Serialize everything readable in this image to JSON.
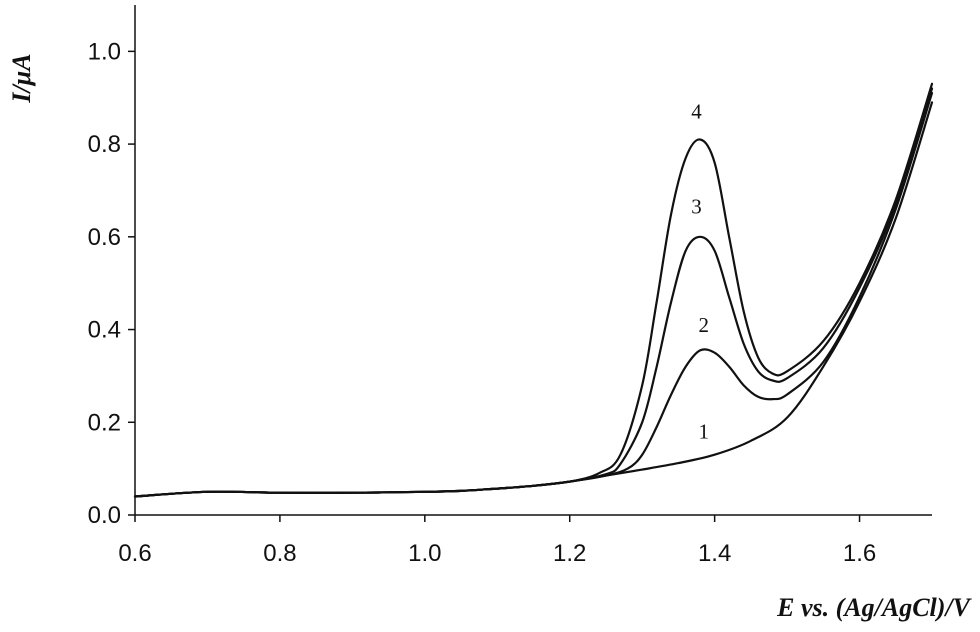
{
  "chart_data": {
    "type": "line",
    "title": "",
    "xlabel": "E vs. (Ag/AgCl)/V",
    "ylabel_italic": "I",
    "ylabel_unit": "/μA",
    "xlim": [
      0.6,
      1.7
    ],
    "ylim": [
      0,
      1.1
    ],
    "x_ticks": [
      "0.6",
      "0.8",
      "1.0",
      "1.2",
      "1.4",
      "1.6"
    ],
    "y_ticks": [
      "0.0",
      "0.2",
      "0.4",
      "0.6",
      "0.8",
      "1.0"
    ],
    "grid": false,
    "legend": "none",
    "series": [
      {
        "name": "1",
        "x": [
          0.6,
          0.7,
          0.8,
          0.9,
          1.0,
          1.05,
          1.1,
          1.15,
          1.2,
          1.25,
          1.3,
          1.35,
          1.4,
          1.45,
          1.5,
          1.55,
          1.6,
          1.65,
          1.7
        ],
        "y": [
          0.04,
          0.05,
          0.048,
          0.048,
          0.05,
          0.052,
          0.057,
          0.063,
          0.072,
          0.085,
          0.098,
          0.112,
          0.13,
          0.16,
          0.21,
          0.32,
          0.46,
          0.64,
          0.89
        ]
      },
      {
        "name": "2",
        "x": [
          0.6,
          0.7,
          0.8,
          0.9,
          1.0,
          1.05,
          1.1,
          1.15,
          1.2,
          1.25,
          1.28,
          1.3,
          1.32,
          1.34,
          1.36,
          1.38,
          1.4,
          1.42,
          1.44,
          1.46,
          1.48,
          1.5,
          1.55,
          1.6,
          1.65,
          1.7
        ],
        "y": [
          0.04,
          0.05,
          0.048,
          0.048,
          0.05,
          0.052,
          0.057,
          0.063,
          0.072,
          0.085,
          0.1,
          0.13,
          0.19,
          0.26,
          0.32,
          0.355,
          0.35,
          0.32,
          0.28,
          0.255,
          0.25,
          0.26,
          0.33,
          0.47,
          0.66,
          0.91
        ]
      },
      {
        "name": "3",
        "x": [
          0.6,
          0.7,
          0.8,
          0.9,
          1.0,
          1.05,
          1.1,
          1.15,
          1.2,
          1.25,
          1.27,
          1.3,
          1.32,
          1.34,
          1.36,
          1.38,
          1.4,
          1.42,
          1.44,
          1.46,
          1.48,
          1.5,
          1.55,
          1.6,
          1.65,
          1.7
        ],
        "y": [
          0.04,
          0.05,
          0.048,
          0.048,
          0.05,
          0.052,
          0.057,
          0.063,
          0.072,
          0.088,
          0.11,
          0.2,
          0.32,
          0.46,
          0.57,
          0.6,
          0.57,
          0.47,
          0.37,
          0.31,
          0.29,
          0.295,
          0.36,
          0.49,
          0.67,
          0.92
        ]
      },
      {
        "name": "4",
        "x": [
          0.6,
          0.7,
          0.8,
          0.9,
          1.0,
          1.05,
          1.1,
          1.15,
          1.2,
          1.24,
          1.27,
          1.3,
          1.32,
          1.34,
          1.36,
          1.38,
          1.4,
          1.42,
          1.44,
          1.46,
          1.48,
          1.5,
          1.55,
          1.6,
          1.65,
          1.7
        ],
        "y": [
          0.04,
          0.05,
          0.048,
          0.048,
          0.05,
          0.052,
          0.057,
          0.063,
          0.072,
          0.09,
          0.13,
          0.28,
          0.46,
          0.65,
          0.77,
          0.81,
          0.76,
          0.6,
          0.44,
          0.34,
          0.305,
          0.31,
          0.375,
          0.5,
          0.68,
          0.93
        ]
      }
    ],
    "curve_labels": [
      {
        "text": "1",
        "x": 1.385,
        "y": 0.165
      },
      {
        "text": "2",
        "x": 1.385,
        "y": 0.395
      },
      {
        "text": "3",
        "x": 1.375,
        "y": 0.65
      },
      {
        "text": "4",
        "x": 1.375,
        "y": 0.855
      }
    ]
  }
}
